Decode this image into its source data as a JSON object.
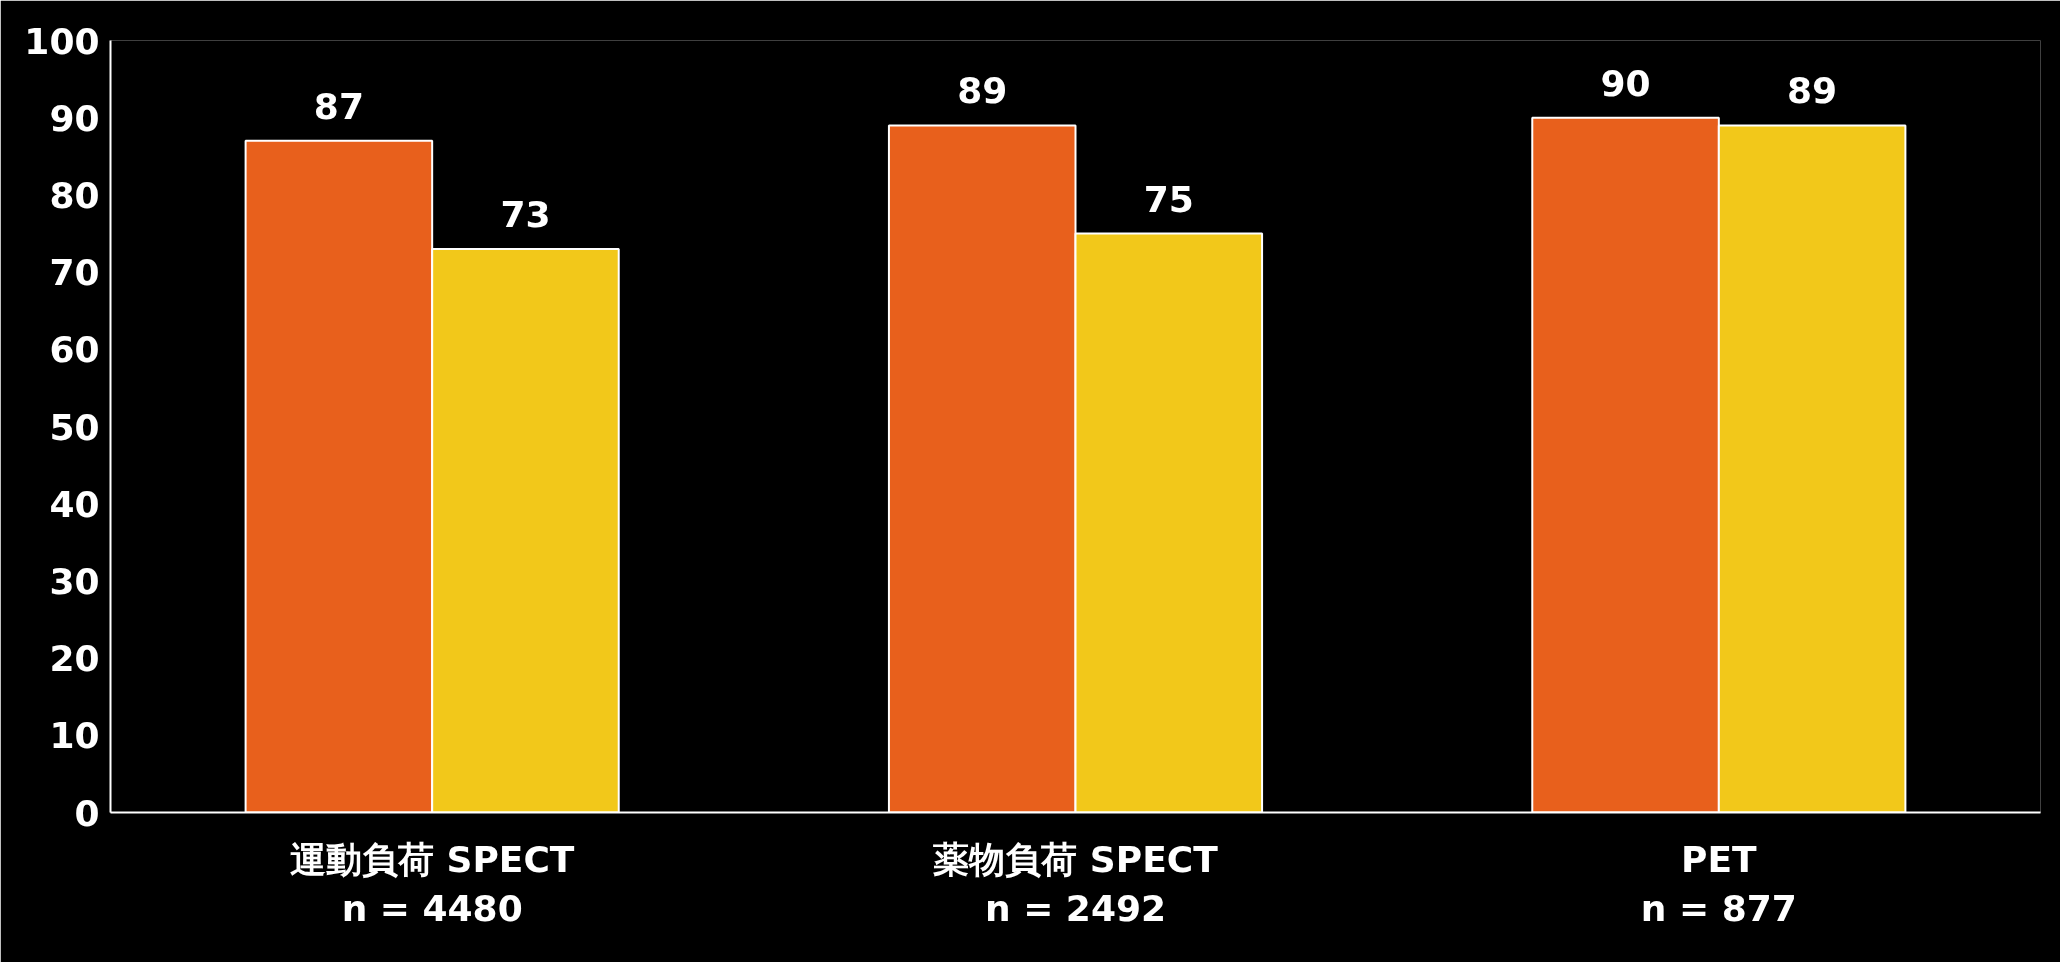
{
  "chart_data": {
    "type": "bar",
    "categories": [
      "運動負荷 SPECT\nn = 4480",
      "薬物負荷 SPECT\nn = 2492",
      "PET\nn = 877"
    ],
    "series": [
      {
        "color": "#e8601c",
        "values": [
          87,
          89,
          90
        ]
      },
      {
        "color": "#f2c81a",
        "values": [
          73,
          75,
          89
        ]
      }
    ],
    "ylim": [
      0,
      100
    ],
    "yticks": [
      0,
      10,
      20,
      30,
      40,
      50,
      60,
      70,
      80,
      90,
      100
    ],
    "data_labels": true,
    "grid": false
  }
}
